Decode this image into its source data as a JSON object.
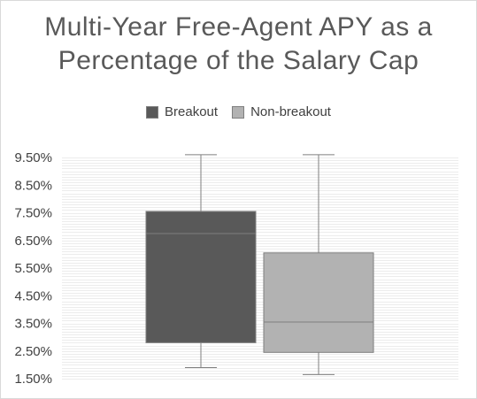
{
  "chart_data": {
    "type": "box",
    "title": [
      "Multi-Year Free-Agent APY as a",
      "Percentage of the Salary Cap"
    ],
    "xlabel": "",
    "ylabel": "",
    "ylim": [
      1.5,
      9.5
    ],
    "yticks": [
      "9.50%",
      "8.50%",
      "7.50%",
      "6.50%",
      "5.50%",
      "4.50%",
      "3.50%",
      "2.50%",
      "1.50%"
    ],
    "ytick_values": [
      9.5,
      8.5,
      7.5,
      6.5,
      5.5,
      4.5,
      3.5,
      2.5,
      1.5
    ],
    "grid": true,
    "legend_position": "top",
    "series": [
      {
        "name": "Breakout",
        "color": "#595959",
        "min": 1.9,
        "q1": 2.8,
        "median": 6.75,
        "q3": 7.55,
        "max": 9.6
      },
      {
        "name": "Non-breakout",
        "color": "#b2b2b2",
        "min": 1.65,
        "q1": 2.45,
        "median": 3.55,
        "q3": 6.05,
        "max": 9.6
      }
    ]
  }
}
